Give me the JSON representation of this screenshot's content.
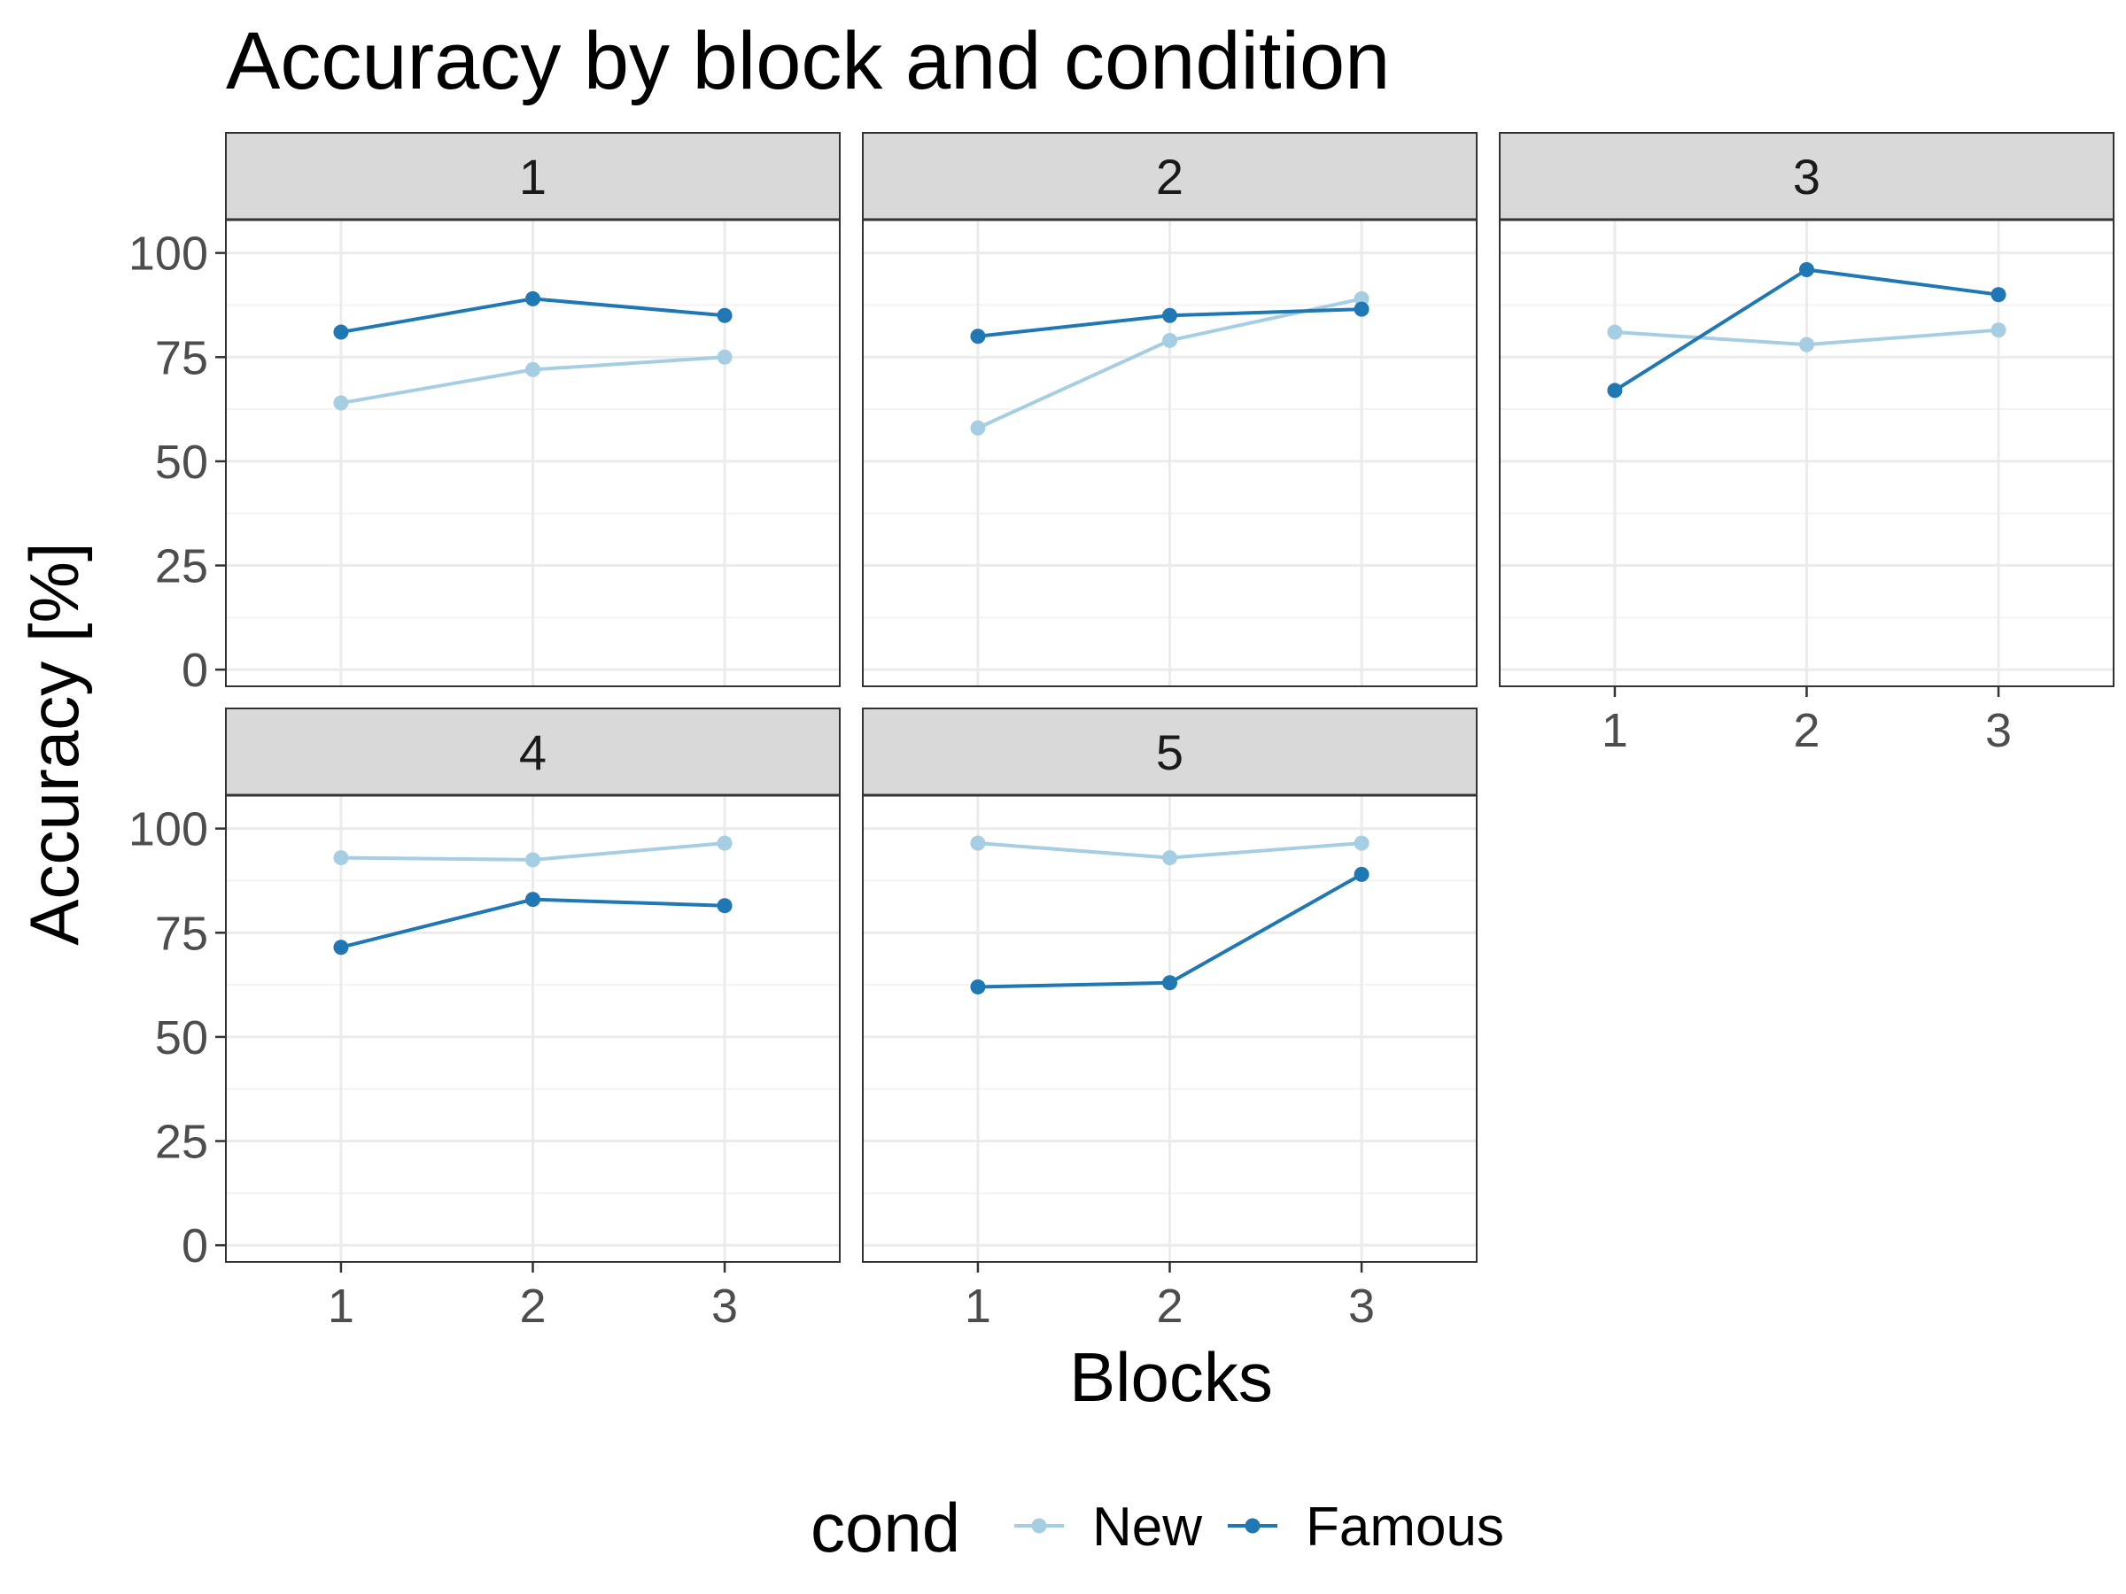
{
  "chart_data": {
    "type": "line",
    "title": "Accuracy by block and condition",
    "xlabel": "Blocks",
    "ylabel": "Accuracy [%]",
    "x": [
      1,
      2,
      3
    ],
    "ylim": [
      -4,
      108
    ],
    "yticks": [
      0,
      25,
      50,
      75,
      100
    ],
    "grid": true,
    "legend": {
      "title": "cond",
      "position": "bottom",
      "entries": [
        {
          "name": "New",
          "color": "#a6cee3"
        },
        {
          "name": "Famous",
          "color": "#1f78b4"
        }
      ]
    },
    "facets": [
      {
        "label": "1",
        "series": [
          {
            "name": "New",
            "values": [
              64,
              72,
              75
            ]
          },
          {
            "name": "Famous",
            "values": [
              81,
              89,
              85
            ]
          }
        ]
      },
      {
        "label": "2",
        "series": [
          {
            "name": "New",
            "values": [
              58,
              79,
              89
            ]
          },
          {
            "name": "Famous",
            "values": [
              80,
              85,
              86.5
            ]
          }
        ]
      },
      {
        "label": "3",
        "series": [
          {
            "name": "New",
            "values": [
              81,
              78,
              81.5
            ]
          },
          {
            "name": "Famous",
            "values": [
              67,
              96,
              90
            ]
          }
        ]
      },
      {
        "label": "4",
        "series": [
          {
            "name": "New",
            "values": [
              93,
              92.5,
              96.5
            ]
          },
          {
            "name": "Famous",
            "values": [
              71.5,
              83,
              81.5
            ]
          }
        ]
      },
      {
        "label": "5",
        "series": [
          {
            "name": "New",
            "values": [
              96.5,
              93,
              96.5
            ]
          },
          {
            "name": "Famous",
            "values": [
              62,
              63,
              89
            ]
          }
        ]
      }
    ]
  }
}
